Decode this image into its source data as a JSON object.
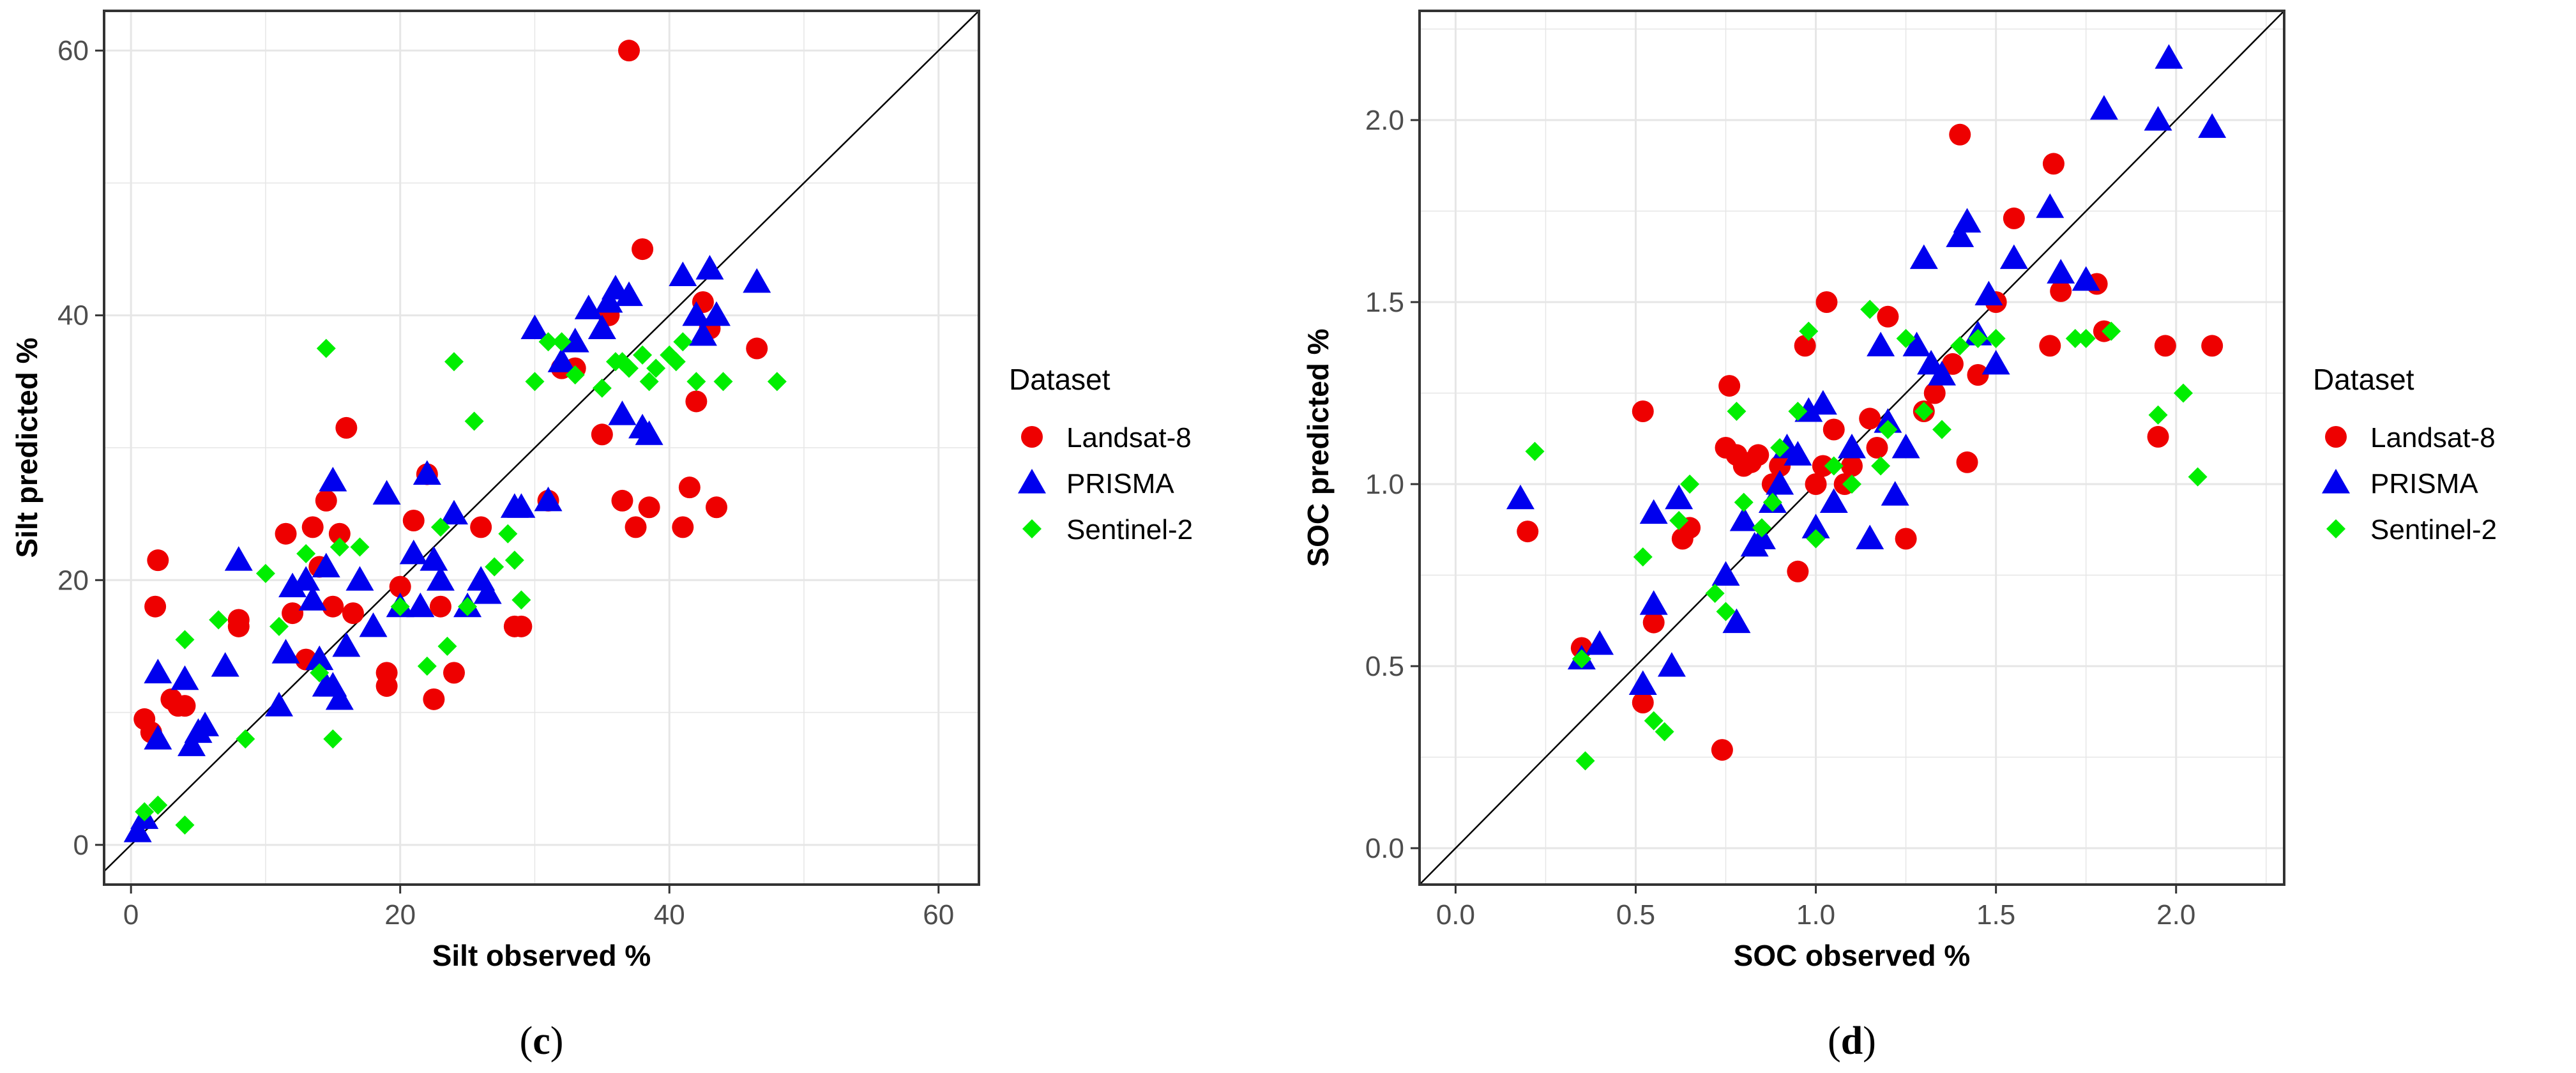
{
  "colors": {
    "Landsat-8": "#ee0000",
    "PRISMA": "#0000ee",
    "Sentinel-2": "#00ee00",
    "grid": "#e6e6e6",
    "axis_text": "#4d4d4d"
  },
  "chart_data": [
    {
      "type": "scatter",
      "panel": "c",
      "panel_label_open": "(",
      "panel_label_letter": "c",
      "panel_label_close": ")",
      "xlabel": "Silt observed %",
      "ylabel": "Silt predicted %",
      "xlim": [
        -2,
        63
      ],
      "ylim": [
        -3,
        63
      ],
      "xticks": [
        0,
        20,
        40,
        60
      ],
      "yticks": [
        0,
        20,
        40,
        60
      ],
      "tick_labels_x": [
        "0",
        "20",
        "40",
        "60"
      ],
      "tick_labels_y": [
        "0",
        "20",
        "40",
        "60"
      ],
      "identity_line": true,
      "grid": true,
      "legend_title": "Dataset",
      "legend_position": "right",
      "series": [
        {
          "name": "Landsat-8",
          "marker": "circle",
          "x": [
            1,
            1.5,
            2,
            1.8,
            3,
            3.5,
            4,
            8,
            8,
            11.5,
            12,
            13.5,
            14,
            14.5,
            15,
            15.5,
            16,
            13,
            16.5,
            19,
            19,
            20,
            21,
            22,
            22.5,
            23,
            24,
            26,
            28.5,
            29,
            31,
            32,
            33,
            35,
            36.5,
            37,
            35.5,
            38,
            37.5,
            38.5,
            41,
            41.5,
            42,
            42.5,
            43,
            43.5,
            46.5
          ],
          "y": [
            9.5,
            8.5,
            21.5,
            18,
            11,
            10.5,
            10.5,
            17,
            16.5,
            23.5,
            17.5,
            24,
            21,
            26,
            18,
            23.5,
            31.5,
            14,
            17.5,
            13,
            12,
            19.5,
            24.5,
            28,
            11,
            18,
            13,
            24,
            16.5,
            16.5,
            26,
            36,
            36,
            31,
            26,
            60,
            40,
            45,
            24,
            25.5,
            24,
            27,
            33.5,
            41,
            39,
            25.5,
            37.5
          ]
        },
        {
          "name": "PRISMA",
          "marker": "triangle",
          "x": [
            0.5,
            1,
            2,
            2,
            4,
            4.5,
            5,
            5.5,
            7,
            8,
            11,
            11.5,
            12,
            13,
            13.5,
            14,
            14.5,
            14.5,
            15,
            15,
            15.5,
            16,
            17,
            18,
            19,
            20,
            21,
            21.5,
            22,
            22.5,
            23,
            24,
            25,
            26,
            26.5,
            28.5,
            29,
            30,
            31,
            32,
            33,
            34,
            35,
            35.5,
            36,
            36.5,
            37,
            38,
            38.5,
            41,
            42,
            42.5,
            43,
            43.5,
            46.5
          ],
          "y": [
            1,
            2,
            8,
            13,
            12.5,
            7.5,
            8.5,
            9,
            13.5,
            21.5,
            10.5,
            14.5,
            19.5,
            20,
            18.5,
            14,
            12,
            21,
            12,
            27.5,
            11,
            15,
            20,
            16.5,
            26.5,
            18,
            22,
            18,
            28,
            21.5,
            20,
            25,
            18,
            20,
            19,
            25.5,
            25.5,
            39,
            26,
            36.5,
            38,
            40.5,
            39,
            41,
            42,
            32.5,
            41.5,
            31.5,
            31,
            43,
            40,
            38.5,
            43.5,
            40,
            42.5
          ]
        },
        {
          "name": "Sentinel-2",
          "marker": "diamond",
          "x": [
            1,
            2,
            4,
            4,
            6.5,
            8.5,
            10,
            11,
            13,
            14,
            14.5,
            15,
            15.5,
            17,
            20,
            22,
            23,
            23.5,
            24,
            25,
            25.5,
            27,
            28,
            28.5,
            29,
            30,
            31,
            32,
            33,
            35,
            36,
            36.5,
            37,
            38,
            38.5,
            39,
            40,
            40.5,
            41,
            42,
            44,
            48
          ],
          "y": [
            2.5,
            3,
            15.5,
            1.5,
            17,
            8,
            20.5,
            16.5,
            22,
            13,
            37.5,
            8,
            22.5,
            22.5,
            18,
            13.5,
            24,
            15,
            36.5,
            18,
            32,
            21,
            23.5,
            21.5,
            18.5,
            35,
            38,
            38,
            35.5,
            34.5,
            36.5,
            36.5,
            36,
            37,
            35,
            36,
            37,
            36.5,
            38,
            35,
            35,
            35
          ]
        }
      ]
    },
    {
      "type": "scatter",
      "panel": "d",
      "panel_label_open": "(",
      "panel_label_letter": "d",
      "panel_label_close": ")",
      "xlabel": "SOC observed %",
      "ylabel": "SOC predicted %",
      "xlim": [
        -0.1,
        2.3
      ],
      "ylim": [
        -0.1,
        2.3
      ],
      "xticks": [
        0,
        0.5,
        1,
        1.5,
        2
      ],
      "yticks": [
        0,
        0.5,
        1,
        1.5,
        2
      ],
      "tick_labels_x": [
        "0.0",
        "0.5",
        "1.0",
        "1.5",
        "2.0"
      ],
      "tick_labels_y": [
        "0.0",
        "0.5",
        "1.0",
        "1.5",
        "2.0"
      ],
      "identity_line": true,
      "grid": true,
      "legend_title": "Dataset",
      "legend_position": "right",
      "series": [
        {
          "name": "Landsat-8",
          "marker": "circle",
          "x": [
            0.2,
            0.35,
            0.52,
            0.52,
            0.55,
            0.63,
            0.65,
            0.74,
            0.75,
            0.76,
            0.78,
            0.8,
            0.82,
            0.84,
            0.88,
            0.9,
            0.95,
            0.97,
            1.0,
            1.02,
            1.03,
            1.05,
            1.08,
            1.1,
            1.15,
            1.17,
            1.2,
            1.25,
            1.3,
            1.33,
            1.38,
            1.4,
            1.42,
            1.45,
            1.5,
            1.55,
            1.65,
            1.66,
            1.68,
            1.78,
            1.8,
            1.95,
            1.97,
            2.1
          ],
          "y": [
            0.87,
            0.55,
            0.4,
            1.2,
            0.62,
            0.85,
            0.88,
            0.27,
            1.1,
            1.27,
            1.08,
            1.05,
            1.06,
            1.08,
            1.0,
            1.05,
            0.76,
            1.38,
            1.0,
            1.05,
            1.5,
            1.15,
            1.0,
            1.05,
            1.18,
            1.1,
            1.46,
            0.85,
            1.2,
            1.25,
            1.33,
            1.96,
            1.06,
            1.3,
            1.5,
            1.73,
            1.38,
            1.88,
            1.53,
            1.55,
            1.42,
            1.13,
            1.38,
            1.38
          ]
        },
        {
          "name": "PRISMA",
          "marker": "triangle",
          "x": [
            0.18,
            0.35,
            0.4,
            0.52,
            0.55,
            0.55,
            0.6,
            0.62,
            0.75,
            0.78,
            0.8,
            0.83,
            0.85,
            0.88,
            0.9,
            0.92,
            0.95,
            0.98,
            1.0,
            1.02,
            1.05,
            1.1,
            1.15,
            1.18,
            1.2,
            1.22,
            1.25,
            1.28,
            1.3,
            1.32,
            1.35,
            1.4,
            1.42,
            1.45,
            1.48,
            1.5,
            1.55,
            1.65,
            1.68,
            1.75,
            1.8,
            1.95,
            1.98,
            2.1
          ],
          "y": [
            0.96,
            0.52,
            0.56,
            0.45,
            0.67,
            0.92,
            0.5,
            0.96,
            0.75,
            0.62,
            0.9,
            0.83,
            0.85,
            0.95,
            1.0,
            1.1,
            1.08,
            1.2,
            0.88,
            1.22,
            0.95,
            1.1,
            0.85,
            1.38,
            1.17,
            0.97,
            1.1,
            1.38,
            1.62,
            1.33,
            1.3,
            1.68,
            1.72,
            1.41,
            1.52,
            1.33,
            1.62,
            1.76,
            1.58,
            1.56,
            2.03,
            2.0,
            2.17,
            1.98
          ]
        },
        {
          "name": "Sentinel-2",
          "marker": "diamond",
          "x": [
            0.22,
            0.35,
            0.36,
            0.52,
            0.55,
            0.58,
            0.62,
            0.65,
            0.72,
            0.75,
            0.78,
            0.8,
            0.85,
            0.88,
            0.9,
            0.95,
            0.98,
            1.0,
            1.05,
            1.1,
            1.15,
            1.18,
            1.2,
            1.25,
            1.3,
            1.35,
            1.4,
            1.45,
            1.5,
            1.72,
            1.75,
            1.82,
            1.95,
            2.02,
            2.06
          ],
          "y": [
            1.09,
            0.52,
            0.24,
            0.8,
            0.35,
            0.32,
            0.9,
            1.0,
            0.7,
            0.65,
            1.2,
            0.95,
            0.88,
            0.95,
            1.1,
            1.2,
            1.42,
            0.85,
            1.05,
            1.0,
            1.48,
            1.05,
            1.15,
            1.4,
            1.2,
            1.15,
            1.38,
            1.4,
            1.4,
            1.4,
            1.4,
            1.42,
            1.19,
            1.25,
            1.02
          ]
        }
      ]
    }
  ]
}
